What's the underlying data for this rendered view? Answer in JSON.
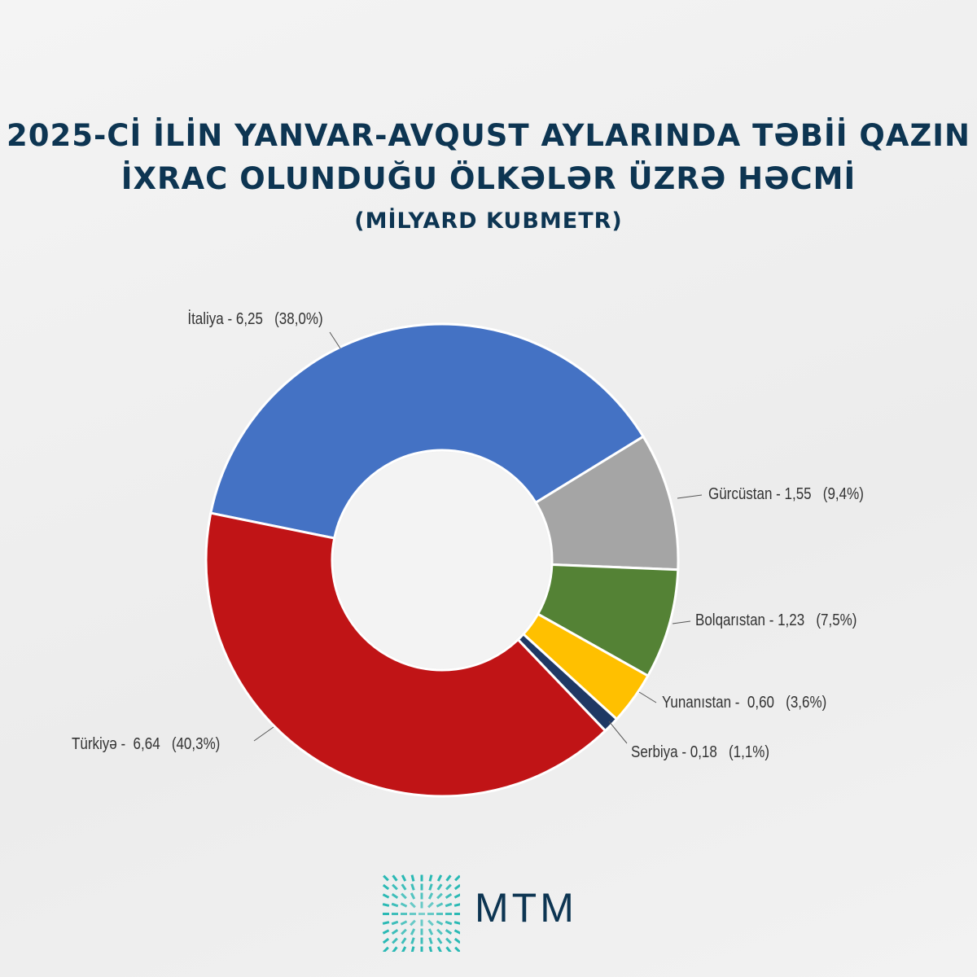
{
  "title": {
    "line1": "2025-Cİ İLİN YANVAR-AVQUST AYLARINDA TƏBİİ QAZIN",
    "line2": "İXRAC OLUNDUĞU ÖLKƏLƏR ÜZRƏ HƏCMİ",
    "subtitle": "(MİLYARD KUBMETR)"
  },
  "chart_data": {
    "type": "pie",
    "variant": "donut",
    "title": "2025-Cİ İLİN YANVAR-AVQUST AYLARINDA TƏBİİ QAZIN İXRAC OLUNDUĞU ÖLKƏLƏR ÜZRƏ HƏCMİ",
    "unit": "MİLYARD KUBMETR",
    "slices": [
      {
        "name": "İtaliya",
        "value": 6.25,
        "percent": 38.0,
        "color": "#4472c4",
        "label": "İtaliya - 6,25   (38,0%)"
      },
      {
        "name": "Gürcüstan",
        "value": 1.55,
        "percent": 9.4,
        "color": "#a5a5a5",
        "label": "Gürcüstan - 1,55   (9,4%)"
      },
      {
        "name": "Bolqarıstan",
        "value": 1.23,
        "percent": 7.5,
        "color": "#548235",
        "label": "Bolqarıstan - 1,23   (7,5%)"
      },
      {
        "name": "Yunanıstan",
        "value": 0.6,
        "percent": 3.6,
        "color": "#ffc000",
        "label": "Yunanıstan -  0,60   (3,6%)"
      },
      {
        "name": "Serbiya",
        "value": 0.18,
        "percent": 1.1,
        "color": "#1f3864",
        "label": "Serbiya - 0,18   (1,1%)"
      },
      {
        "name": "Türkiyə",
        "value": 6.64,
        "percent": 40.3,
        "color": "#c01416",
        "label": "Türkiyə -  6,64   (40,3%)"
      }
    ]
  },
  "logo": {
    "text": "MTM",
    "color": "#1fb5b0"
  }
}
